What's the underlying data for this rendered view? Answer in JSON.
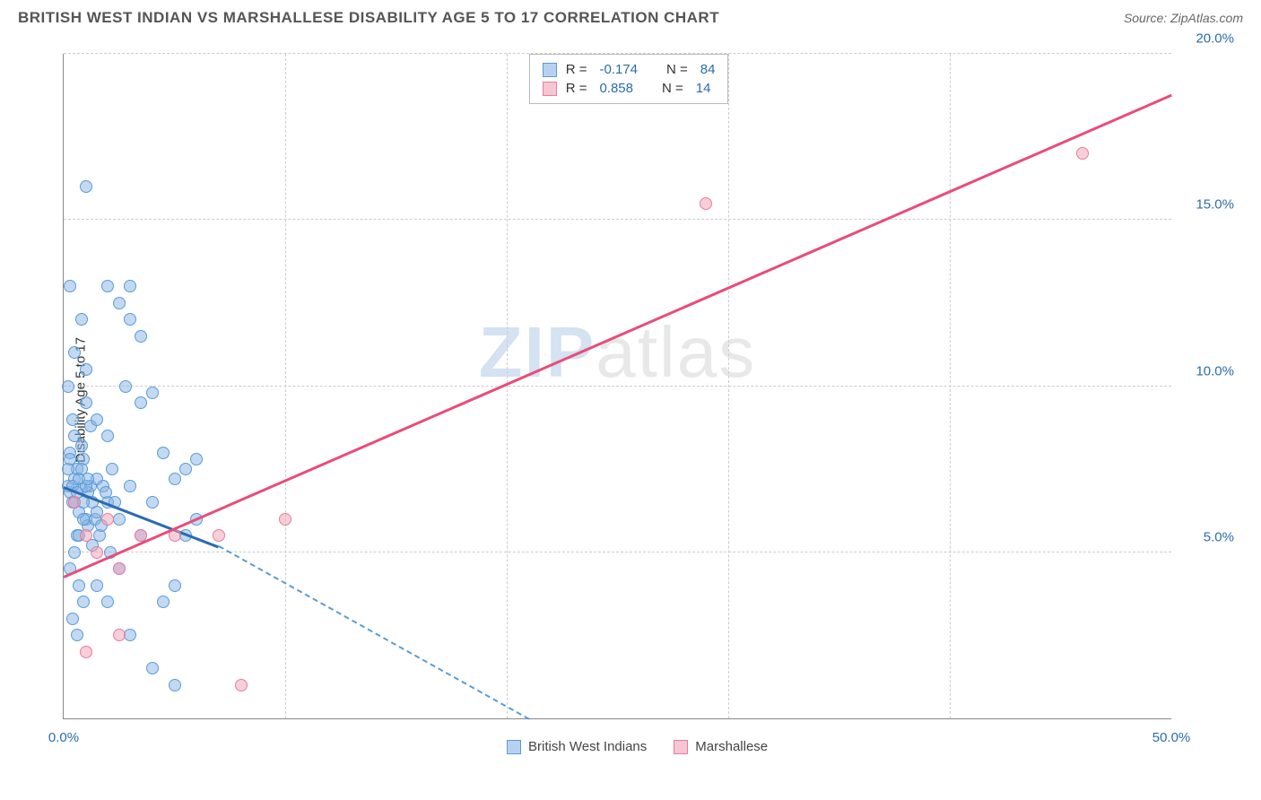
{
  "header": {
    "title": "BRITISH WEST INDIAN VS MARSHALLESE DISABILITY AGE 5 TO 17 CORRELATION CHART",
    "source_prefix": "Source: ",
    "source": "ZipAtlas.com"
  },
  "chart": {
    "type": "scatter",
    "y_axis_label": "Disability Age 5 to 17",
    "watermark_zip": "ZIP",
    "watermark_atlas": "atlas",
    "background_color": "#ffffff",
    "grid_color": "#cccccc",
    "axis_color": "#888888",
    "x_range": [
      0,
      50
    ],
    "y_range": [
      0,
      20
    ],
    "y_ticks": [
      {
        "value": 5,
        "label": "5.0%"
      },
      {
        "value": 10,
        "label": "10.0%"
      },
      {
        "value": 15,
        "label": "15.0%"
      },
      {
        "value": 20,
        "label": "20.0%"
      }
    ],
    "x_ticks": [
      {
        "value": 0,
        "label": "0.0%"
      },
      {
        "value": 50,
        "label": "50.0%"
      }
    ],
    "x_gridlines": [
      10,
      20,
      30,
      40
    ],
    "series": [
      {
        "name": "British West Indians",
        "color_fill": "rgba(135,180,230,0.5)",
        "color_border": "#5a9bd5",
        "css_class": "blue",
        "R": "-0.174",
        "N": "84",
        "trend": {
          "solid": {
            "x1": 0,
            "y1": 7.0,
            "x2": 7,
            "y2": 5.2,
            "color": "#2b6cb0"
          },
          "dashed": {
            "x1": 7,
            "y1": 5.2,
            "x2": 21,
            "y2": 0,
            "color": "#5a9bd5"
          }
        },
        "points": [
          [
            0.2,
            7.0
          ],
          [
            0.3,
            6.8
          ],
          [
            0.5,
            7.2
          ],
          [
            0.4,
            6.5
          ],
          [
            0.6,
            7.5
          ],
          [
            0.8,
            6.9
          ],
          [
            0.3,
            8.0
          ],
          [
            0.5,
            8.5
          ],
          [
            0.7,
            6.2
          ],
          [
            0.9,
            7.8
          ],
          [
            1.0,
            6.0
          ],
          [
            1.2,
            7.0
          ],
          [
            0.4,
            9.0
          ],
          [
            0.6,
            5.5
          ],
          [
            0.8,
            8.2
          ],
          [
            1.1,
            5.8
          ],
          [
            1.3,
            6.5
          ],
          [
            1.5,
            7.2
          ],
          [
            0.2,
            10.0
          ],
          [
            0.5,
            11.0
          ],
          [
            0.3,
            4.5
          ],
          [
            0.7,
            4.0
          ],
          [
            0.9,
            3.5
          ],
          [
            1.0,
            9.5
          ],
          [
            1.2,
            8.8
          ],
          [
            1.4,
            6.0
          ],
          [
            1.6,
            5.5
          ],
          [
            1.8,
            7.0
          ],
          [
            2.0,
            6.5
          ],
          [
            2.2,
            7.5
          ],
          [
            0.4,
            3.0
          ],
          [
            0.6,
            2.5
          ],
          [
            0.8,
            12.0
          ],
          [
            1.0,
            10.5
          ],
          [
            1.5,
            9.0
          ],
          [
            2.0,
            8.5
          ],
          [
            2.5,
            6.0
          ],
          [
            3.0,
            7.0
          ],
          [
            3.5,
            5.5
          ],
          [
            4.0,
            6.5
          ],
          [
            0.3,
            13.0
          ],
          [
            2.0,
            13.0
          ],
          [
            3.0,
            13.0
          ],
          [
            1.0,
            16.0
          ],
          [
            4.5,
            8.0
          ],
          [
            5.0,
            7.2
          ],
          [
            3.5,
            9.5
          ],
          [
            2.8,
            10.0
          ],
          [
            4.0,
            9.8
          ],
          [
            5.5,
            5.5
          ],
          [
            6.0,
            6.0
          ],
          [
            1.5,
            4.0
          ],
          [
            2.0,
            3.5
          ],
          [
            2.5,
            4.5
          ],
          [
            3.0,
            2.5
          ],
          [
            4.0,
            1.5
          ],
          [
            5.0,
            1.0
          ],
          [
            2.5,
            12.5
          ],
          [
            3.0,
            12.0
          ],
          [
            3.5,
            11.5
          ],
          [
            0.5,
            5.0
          ],
          [
            0.7,
            5.5
          ],
          [
            0.9,
            6.0
          ],
          [
            1.1,
            6.8
          ],
          [
            1.3,
            5.2
          ],
          [
            1.5,
            6.2
          ],
          [
            1.7,
            5.8
          ],
          [
            1.9,
            6.8
          ],
          [
            2.1,
            5.0
          ],
          [
            2.3,
            6.5
          ],
          [
            4.5,
            3.5
          ],
          [
            5.0,
            4.0
          ],
          [
            5.5,
            7.5
          ],
          [
            6.0,
            7.8
          ],
          [
            0.2,
            7.5
          ],
          [
            0.3,
            7.8
          ],
          [
            0.4,
            7.0
          ],
          [
            0.5,
            6.5
          ],
          [
            0.6,
            6.8
          ],
          [
            0.7,
            7.2
          ],
          [
            0.8,
            7.5
          ],
          [
            0.9,
            6.5
          ],
          [
            1.0,
            7.0
          ],
          [
            1.1,
            7.2
          ]
        ]
      },
      {
        "name": "Marshallese",
        "color_fill": "rgba(240,160,180,0.5)",
        "color_border": "#e87ca0",
        "css_class": "pink",
        "R": "0.858",
        "N": "14",
        "trend": {
          "solid": {
            "x1": 0,
            "y1": 4.3,
            "x2": 50,
            "y2": 18.8,
            "color": "#e84d7a"
          }
        },
        "points": [
          [
            0.5,
            6.5
          ],
          [
            1.0,
            5.5
          ],
          [
            1.5,
            5.0
          ],
          [
            2.0,
            6.0
          ],
          [
            2.5,
            4.5
          ],
          [
            3.5,
            5.5
          ],
          [
            5.0,
            5.5
          ],
          [
            7.0,
            5.5
          ],
          [
            10.0,
            6.0
          ],
          [
            1.0,
            2.0
          ],
          [
            2.5,
            2.5
          ],
          [
            8.0,
            1.0
          ],
          [
            29.0,
            15.5
          ],
          [
            46.0,
            17.0
          ]
        ]
      }
    ],
    "stats_box": {
      "rows": [
        {
          "swatch": "blue",
          "r_label": "R =",
          "r_val": "-0.174",
          "n_label": "N =",
          "n_val": "84"
        },
        {
          "swatch": "pink",
          "r_label": "R =",
          "r_val": "0.858",
          "n_label": "N =",
          "n_val": "14"
        }
      ]
    },
    "bottom_legend": [
      {
        "swatch": "blue",
        "label": "British West Indians"
      },
      {
        "swatch": "pink",
        "label": "Marshallese"
      }
    ]
  }
}
